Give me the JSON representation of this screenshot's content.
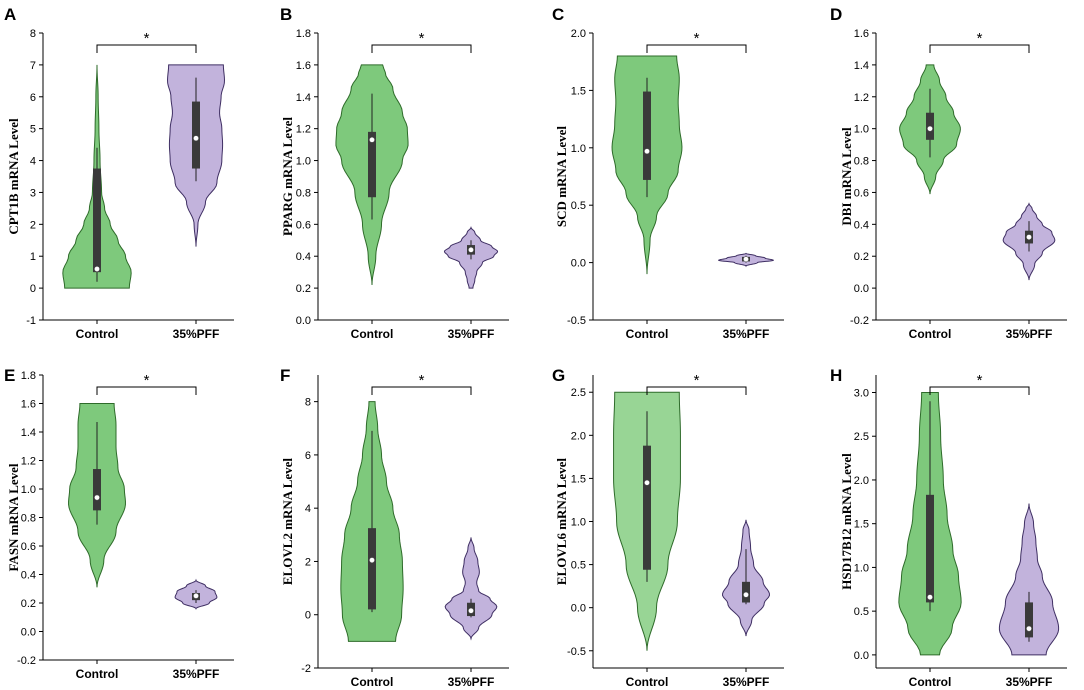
{
  "figure": {
    "colors": {
      "control_fill": "#7ec97c",
      "control_fill_light": "#98d595",
      "control_stroke": "#2e6b2a",
      "pff_fill": "#c2b3dc",
      "pff_stroke": "#3f2f63",
      "box": "#3a3a3a",
      "median": "#ffffff"
    }
  },
  "chart_data": [
    {
      "panel": "A",
      "type": "violin",
      "ylabel": "CPT1B mRNA Level",
      "ylim": [
        -1,
        8
      ],
      "yticks": [
        "-1",
        "0",
        "1",
        "2",
        "3",
        "4",
        "5",
        "6",
        "7",
        "8"
      ],
      "categories": [
        "Control",
        "35%PFF"
      ],
      "significance": "*",
      "series": [
        {
          "name": "Control",
          "violin_range": [
            0,
            7
          ],
          "median": 0.6,
          "q1": 0.5,
          "q3": 3.75,
          "whisker": [
            0.2,
            4.4
          ],
          "shape": [
            [
              0,
              0.85
            ],
            [
              0.5,
              0.9
            ],
            [
              1,
              0.75
            ],
            [
              1.5,
              0.55
            ],
            [
              2,
              0.35
            ],
            [
              2.5,
              0.2
            ],
            [
              3,
              0.12
            ],
            [
              4,
              0.08
            ],
            [
              5,
              0.05
            ],
            [
              6,
              0.03
            ],
            [
              7,
              0
            ]
          ]
        },
        {
          "name": "35%PFF",
          "violin_range": [
            1.3,
            7
          ],
          "median": 4.7,
          "q1": 3.75,
          "q3": 5.85,
          "whisker": [
            3.35,
            6.6
          ],
          "shape": [
            [
              1.3,
              0
            ],
            [
              2,
              0.05
            ],
            [
              2.7,
              0.25
            ],
            [
              3.3,
              0.55
            ],
            [
              4,
              0.68
            ],
            [
              4.5,
              0.7
            ],
            [
              5,
              0.68
            ],
            [
              5.5,
              0.62
            ],
            [
              6,
              0.66
            ],
            [
              6.5,
              0.75
            ],
            [
              7,
              0.72
            ]
          ]
        }
      ]
    },
    {
      "panel": "B",
      "type": "violin",
      "ylabel": "PPARG mRNA Level",
      "ylim": [
        0,
        1.8
      ],
      "yticks": [
        "0.0",
        "0.2",
        "0.4",
        "0.6",
        "0.8",
        "1.0",
        "1.2",
        "1.4",
        "1.6",
        "1.8"
      ],
      "categories": [
        "Control",
        "35%PFF"
      ],
      "significance": "*",
      "series": [
        {
          "name": "Control",
          "violin_range": [
            0.22,
            1.6
          ],
          "median": 1.13,
          "q1": 0.77,
          "q3": 1.18,
          "whisker": [
            0.63,
            1.42
          ],
          "shape": [
            [
              0.22,
              0
            ],
            [
              0.4,
              0.1
            ],
            [
              0.6,
              0.25
            ],
            [
              0.8,
              0.45
            ],
            [
              1.0,
              0.8
            ],
            [
              1.1,
              0.95
            ],
            [
              1.2,
              0.93
            ],
            [
              1.3,
              0.8
            ],
            [
              1.45,
              0.55
            ],
            [
              1.55,
              0.35
            ],
            [
              1.6,
              0.28
            ]
          ]
        },
        {
          "name": "35%PFF",
          "violin_range": [
            0.2,
            0.58
          ],
          "median": 0.44,
          "q1": 0.41,
          "q3": 0.47,
          "whisker": [
            0.38,
            0.5
          ],
          "shape": [
            [
              0.2,
              0.05
            ],
            [
              0.25,
              0.1
            ],
            [
              0.3,
              0.15
            ],
            [
              0.36,
              0.3
            ],
            [
              0.4,
              0.6
            ],
            [
              0.43,
              0.7
            ],
            [
              0.46,
              0.55
            ],
            [
              0.5,
              0.25
            ],
            [
              0.55,
              0.1
            ],
            [
              0.58,
              0
            ]
          ]
        }
      ]
    },
    {
      "panel": "C",
      "type": "violin",
      "ylabel": "SCD mRNA Level",
      "ylim": [
        -0.5,
        2.0
      ],
      "yticks": [
        "-0.5",
        "0.0",
        "0.5",
        "1.0",
        "1.5",
        "2.0"
      ],
      "categories": [
        "Control",
        "35%PFF"
      ],
      "significance": "*",
      "series": [
        {
          "name": "Control",
          "violin_range": [
            -0.1,
            1.8
          ],
          "median": 0.97,
          "q1": 0.72,
          "q3": 1.49,
          "whisker": [
            0.57,
            1.61
          ],
          "shape": [
            [
              -0.1,
              0
            ],
            [
              0.2,
              0.08
            ],
            [
              0.4,
              0.25
            ],
            [
              0.6,
              0.55
            ],
            [
              0.8,
              0.82
            ],
            [
              1.0,
              0.92
            ],
            [
              1.2,
              0.85
            ],
            [
              1.4,
              0.82
            ],
            [
              1.6,
              0.85
            ],
            [
              1.8,
              0.78
            ]
          ]
        },
        {
          "name": "35%PFF",
          "violin_range": [
            -0.03,
            0.08
          ],
          "median": 0.03,
          "q1": 0.01,
          "q3": 0.05,
          "whisker": [
            0.0,
            0.06
          ],
          "shape": [
            [
              -0.03,
              0
            ],
            [
              0.0,
              0.3
            ],
            [
              0.02,
              0.72
            ],
            [
              0.04,
              0.5
            ],
            [
              0.06,
              0.25
            ],
            [
              0.08,
              0
            ]
          ]
        }
      ]
    },
    {
      "panel": "D",
      "type": "violin",
      "ylabel": "DBI mRNA Level",
      "ylim": [
        -0.2,
        1.6
      ],
      "yticks": [
        "-0.2",
        "0.0",
        "0.2",
        "0.4",
        "0.6",
        "0.8",
        "1.0",
        "1.2",
        "1.4",
        "1.6"
      ],
      "categories": [
        "Control",
        "35%PFF"
      ],
      "significance": "*",
      "series": [
        {
          "name": "Control",
          "violin_range": [
            0.59,
            1.4
          ],
          "median": 1.0,
          "q1": 0.93,
          "q3": 1.1,
          "whisker": [
            0.82,
            1.25
          ],
          "shape": [
            [
              0.59,
              0
            ],
            [
              0.7,
              0.15
            ],
            [
              0.8,
              0.35
            ],
            [
              0.9,
              0.7
            ],
            [
              1.0,
              0.8
            ],
            [
              1.1,
              0.62
            ],
            [
              1.2,
              0.42
            ],
            [
              1.3,
              0.25
            ],
            [
              1.4,
              0.1
            ]
          ]
        },
        {
          "name": "35%PFF",
          "violin_range": [
            0.05,
            0.53
          ],
          "median": 0.32,
          "q1": 0.28,
          "q3": 0.36,
          "whisker": [
            0.23,
            0.42
          ],
          "shape": [
            [
              0.05,
              0
            ],
            [
              0.15,
              0.15
            ],
            [
              0.22,
              0.35
            ],
            [
              0.3,
              0.68
            ],
            [
              0.35,
              0.6
            ],
            [
              0.4,
              0.35
            ],
            [
              0.45,
              0.2
            ],
            [
              0.5,
              0.08
            ],
            [
              0.53,
              0
            ]
          ]
        }
      ]
    },
    {
      "panel": "E",
      "type": "violin",
      "ylabel": "FASN mRNA Level",
      "ylim": [
        -0.2,
        1.8
      ],
      "yticks": [
        "-0.2",
        "0.0",
        "0.2",
        "0.4",
        "0.6",
        "0.8",
        "1.0",
        "1.2",
        "1.4",
        "1.6",
        "1.8"
      ],
      "categories": [
        "Control",
        "35%PFF"
      ],
      "significance": "*",
      "series": [
        {
          "name": "Control",
          "violin_range": [
            0.31,
            1.6
          ],
          "median": 0.94,
          "q1": 0.85,
          "q3": 1.14,
          "whisker": [
            0.75,
            1.47
          ],
          "shape": [
            [
              0.31,
              0
            ],
            [
              0.5,
              0.18
            ],
            [
              0.7,
              0.5
            ],
            [
              0.9,
              0.75
            ],
            [
              1.0,
              0.72
            ],
            [
              1.15,
              0.55
            ],
            [
              1.3,
              0.5
            ],
            [
              1.45,
              0.5
            ],
            [
              1.6,
              0.45
            ]
          ]
        },
        {
          "name": "35%PFF",
          "violin_range": [
            0.16,
            0.36
          ],
          "median": 0.25,
          "q1": 0.22,
          "q3": 0.27,
          "whisker": [
            0.2,
            0.29
          ],
          "shape": [
            [
              0.16,
              0
            ],
            [
              0.2,
              0.35
            ],
            [
              0.24,
              0.55
            ],
            [
              0.28,
              0.5
            ],
            [
              0.32,
              0.25
            ],
            [
              0.36,
              0
            ]
          ]
        }
      ]
    },
    {
      "panel": "F",
      "type": "violin",
      "ylabel": "ELOVL2 mRNA Level",
      "ylim": [
        -2,
        9
      ],
      "yticks": [
        "-2",
        "0",
        "2",
        "4",
        "6",
        "8"
      ],
      "categories": [
        "Control",
        "35%PFF"
      ],
      "significance": "*",
      "series": [
        {
          "name": "Control",
          "violin_range": [
            -1,
            8
          ],
          "median": 2.05,
          "q1": 0.2,
          "q3": 3.25,
          "whisker": [
            0.1,
            6.9
          ],
          "shape": [
            [
              -1,
              0.62
            ],
            [
              0,
              0.78
            ],
            [
              1,
              0.82
            ],
            [
              2,
              0.8
            ],
            [
              3,
              0.72
            ],
            [
              4,
              0.55
            ],
            [
              5,
              0.38
            ],
            [
              6,
              0.25
            ],
            [
              7,
              0.15
            ],
            [
              8,
              0.08
            ]
          ]
        },
        {
          "name": "35%PFF",
          "violin_range": [
            -0.9,
            2.9
          ],
          "median": 0.15,
          "q1": -0.05,
          "q3": 0.45,
          "whisker": [
            -0.1,
            0.6
          ],
          "shape": [
            [
              -0.9,
              0
            ],
            [
              -0.5,
              0.2
            ],
            [
              0,
              0.55
            ],
            [
              0.3,
              0.68
            ],
            [
              0.6,
              0.5
            ],
            [
              0.9,
              0.2
            ],
            [
              1.2,
              0.15
            ],
            [
              1.6,
              0.22
            ],
            [
              2.0,
              0.18
            ],
            [
              2.5,
              0.08
            ],
            [
              2.9,
              0
            ]
          ]
        }
      ]
    },
    {
      "panel": "G",
      "type": "violin",
      "ylabel": "ELOVL6 mRNA Level",
      "ylim": [
        -0.7,
        2.7
      ],
      "yticks": [
        "-0.5",
        "0.0",
        "0.5",
        "1.0",
        "1.5",
        "2.0",
        "2.5"
      ],
      "categories": [
        "Control",
        "35%PFF"
      ],
      "significance": "*",
      "series": [
        {
          "name": "Control",
          "violin_range": [
            -0.5,
            2.5
          ],
          "median": 1.45,
          "q1": 0.44,
          "q3": 1.88,
          "whisker": [
            0.3,
            2.28
          ],
          "shape": [
            [
              -0.5,
              0
            ],
            [
              0,
              0.25
            ],
            [
              0.5,
              0.55
            ],
            [
              1.0,
              0.8
            ],
            [
              1.5,
              0.88
            ],
            [
              2.0,
              0.88
            ],
            [
              2.5,
              0.85
            ]
          ]
        },
        {
          "name": "35%PFF",
          "violin_range": [
            -0.33,
            1.02
          ],
          "median": 0.15,
          "q1": 0.06,
          "q3": 0.3,
          "whisker": [
            0.04,
            0.68
          ],
          "shape": [
            [
              -0.33,
              0
            ],
            [
              -0.15,
              0.15
            ],
            [
              0.05,
              0.48
            ],
            [
              0.15,
              0.62
            ],
            [
              0.3,
              0.45
            ],
            [
              0.5,
              0.2
            ],
            [
              0.7,
              0.12
            ],
            [
              0.9,
              0.08
            ],
            [
              1.02,
              0
            ]
          ]
        }
      ]
    },
    {
      "panel": "H",
      "type": "violin",
      "ylabel": "HSD17B12 mRNA Level",
      "ylim": [
        -0.15,
        3.2
      ],
      "yticks": [
        "0.0",
        "0.5",
        "1.0",
        "1.5",
        "2.0",
        "2.5",
        "3.0"
      ],
      "categories": [
        "Control",
        "35%PFF"
      ],
      "significance": "*",
      "series": [
        {
          "name": "Control",
          "violin_range": [
            0,
            3.0
          ],
          "median": 0.66,
          "q1": 0.6,
          "q3": 1.83,
          "whisker": [
            0.5,
            2.9
          ],
          "shape": [
            [
              0,
              0.25
            ],
            [
              0.3,
              0.58
            ],
            [
              0.6,
              0.82
            ],
            [
              0.9,
              0.75
            ],
            [
              1.2,
              0.6
            ],
            [
              1.6,
              0.45
            ],
            [
              2.0,
              0.35
            ],
            [
              2.5,
              0.28
            ],
            [
              3.0,
              0.22
            ]
          ]
        },
        {
          "name": "35%PFF",
          "violin_range": [
            0,
            1.73
          ],
          "median": 0.3,
          "q1": 0.2,
          "q3": 0.6,
          "whisker": [
            0.15,
            0.72
          ],
          "shape": [
            [
              0,
              0.45
            ],
            [
              0.3,
              0.78
            ],
            [
              0.6,
              0.62
            ],
            [
              0.9,
              0.35
            ],
            [
              1.1,
              0.22
            ],
            [
              1.3,
              0.18
            ],
            [
              1.5,
              0.12
            ],
            [
              1.73,
              0
            ]
          ]
        }
      ]
    }
  ]
}
